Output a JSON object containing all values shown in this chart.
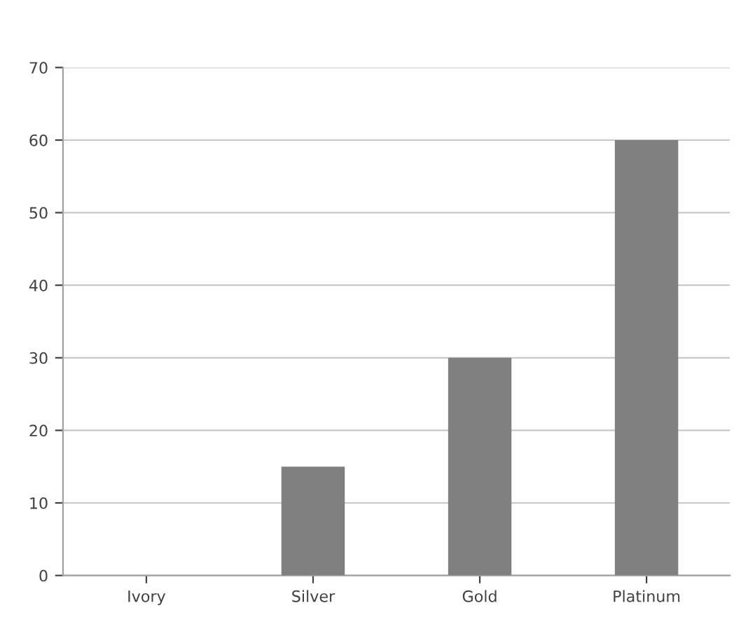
{
  "chart_data": {
    "type": "bar",
    "categories": [
      "Ivory",
      "Silver",
      "Gold",
      "Platinum"
    ],
    "values": [
      0,
      15,
      30,
      60
    ],
    "color": "#808080",
    "ylim": [
      0,
      70
    ],
    "yticks": [
      0,
      10,
      20,
      30,
      40,
      50,
      60,
      70
    ],
    "grid": "y",
    "legend": false
  }
}
